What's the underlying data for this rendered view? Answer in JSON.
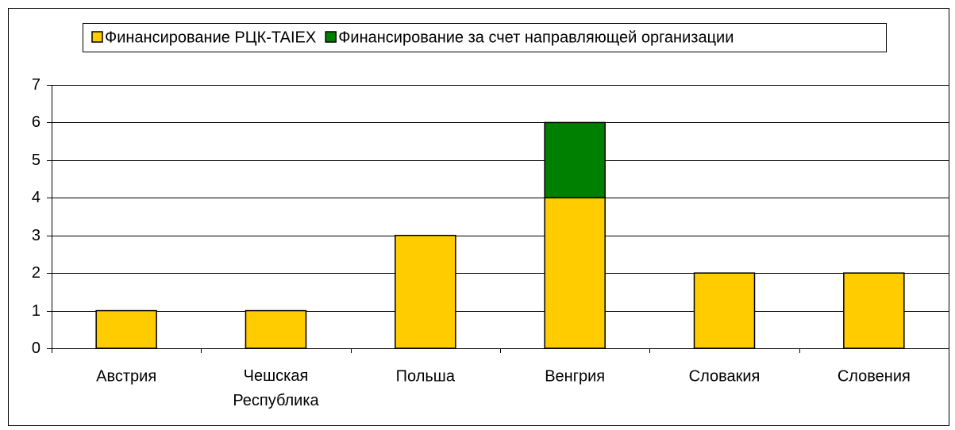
{
  "chart_data": {
    "type": "stacked_bar",
    "categories": [
      "Австрия",
      "Чешская Республика",
      "Польша",
      "Венгрия",
      "Словакия",
      "Словения"
    ],
    "series": [
      {
        "name": "Финансирование РЦК-TAIEX",
        "color": "#ffcc00",
        "values": [
          1,
          1,
          3,
          4,
          2,
          2
        ]
      },
      {
        "name": "Финансирование за счет направляющей организации",
        "color": "#008000",
        "values": [
          0,
          0,
          0,
          2,
          0,
          0
        ]
      }
    ],
    "ylim": [
      0,
      7
    ],
    "yticks": [
      0,
      1,
      2,
      3,
      4,
      5,
      6,
      7
    ],
    "grid": true,
    "legend": "top"
  }
}
